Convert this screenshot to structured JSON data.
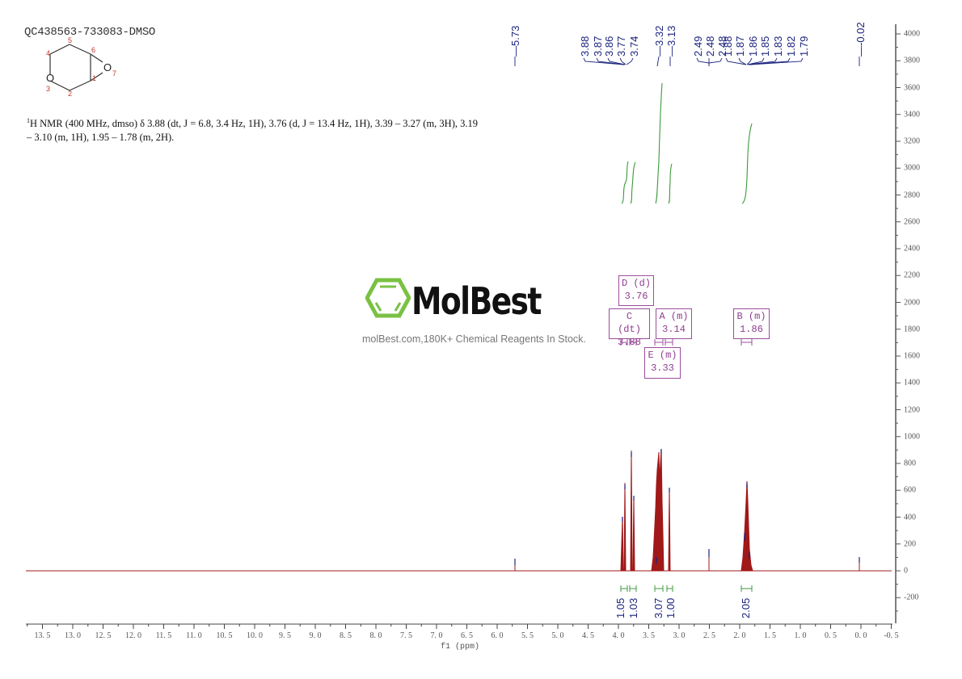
{
  "header": {
    "sample_id": "QC438563-733083-DMSO"
  },
  "structure": {
    "atom_labels": [
      "1",
      "2",
      "3",
      "4",
      "5",
      "6",
      "7"
    ],
    "heteroatoms": [
      {
        "symbol": "O",
        "index": "3"
      },
      {
        "symbol": "O",
        "index": "7"
      }
    ]
  },
  "description": {
    "nucleus_sup": "1",
    "line": "H NMR (400 MHz, dmso) δ 3.88 (dt, J = 6.8, 3.4 Hz, 1H), 3.76 (d, J = 13.4 Hz, 1H), 3.39 – 3.27 (m, 3H), 3.19 – 3.10 (m, 1H), 1.95 – 1.78 (m, 2H)."
  },
  "watermark": {
    "brand": "MolBest",
    "tagline": "molBest.com,180K+ Chemical Reagents In Stock.",
    "brand_color": "#7ac143"
  },
  "peak_labels": [
    "5.73",
    "3.88",
    "3.87",
    "3.86",
    "3.77",
    "3.74",
    "3.32",
    "3.13",
    "2.49",
    "2.48",
    "2.48",
    "1.88",
    "1.87",
    "1.86",
    "1.85",
    "1.83",
    "1.82",
    "1.79",
    "-0.02"
  ],
  "multiplets": [
    {
      "id": "D",
      "type": "d",
      "shift": "3.76",
      "label": "D (d)"
    },
    {
      "id": "C",
      "type": "dt",
      "shift": "3.88",
      "label": "C (dt)"
    },
    {
      "id": "A",
      "type": "m",
      "shift": "3.14",
      "label": "A (m)"
    },
    {
      "id": "B",
      "type": "m",
      "shift": "1.86",
      "label": "B (m)"
    },
    {
      "id": "E",
      "type": "m",
      "shift": "3.33",
      "label": "E (m)"
    }
  ],
  "integrals": [
    "1.05",
    "1.03",
    "3.07",
    "1.00",
    "2.05"
  ],
  "axes": {
    "xlabel": "f1 (ppm)",
    "xticks": [
      "13.5",
      "13.0",
      "12.5",
      "12.0",
      "11.5",
      "11.0",
      "10.5",
      "10.0",
      "9.5",
      "9.0",
      "8.5",
      "8.0",
      "7.5",
      "7.0",
      "6.5",
      "6.0",
      "5.5",
      "5.0",
      "4.5",
      "4.0",
      "3.5",
      "3.0",
      "2.5",
      "2.0",
      "1.5",
      "1.0",
      "0.5",
      "0.0",
      "-0.5"
    ],
    "yticks": [
      "4000",
      "3800",
      "3600",
      "3400",
      "3200",
      "3000",
      "2800",
      "2600",
      "2400",
      "2200",
      "2000",
      "1800",
      "1600",
      "1400",
      "1200",
      "1000",
      "800",
      "600",
      "400",
      "200",
      "0",
      "-200"
    ]
  },
  "colors": {
    "spectrum": "#a01818",
    "peak_marker": "#1a237e",
    "integral": "#3c9a3c",
    "multiplet_box": "#9c4d9c",
    "axis": "#555555"
  },
  "chart_data": {
    "type": "line",
    "title": "QC438563-733083-DMSO",
    "subtitle": "1H NMR (400 MHz, dmso)",
    "xlabel": "f1 (ppm)",
    "ylabel": "",
    "xlim": [
      13.8,
      -0.5
    ],
    "ylim": [
      -400,
      4100
    ],
    "x_reversed": true,
    "grid": false,
    "series": [
      {
        "name": "spectrum",
        "peaks": [
          {
            "ppm": 5.73,
            "intensity": 80
          },
          {
            "ppm": 3.89,
            "intensity": 420
          },
          {
            "ppm": 3.87,
            "intensity": 650
          },
          {
            "ppm": 3.77,
            "intensity": 890
          },
          {
            "ppm": 3.74,
            "intensity": 560
          },
          {
            "ppm": 3.35,
            "intensity": 420
          },
          {
            "ppm": 3.32,
            "intensity": 900
          },
          {
            "ppm": 3.29,
            "intensity": 650
          },
          {
            "ppm": 3.13,
            "intensity": 610
          },
          {
            "ppm": 2.49,
            "intensity": 160
          },
          {
            "ppm": 1.88,
            "intensity": 450
          },
          {
            "ppm": 1.86,
            "intensity": 700
          },
          {
            "ppm": 1.83,
            "intensity": 480
          },
          {
            "ppm": -0.02,
            "intensity": 110
          }
        ]
      },
      {
        "name": "integrals",
        "regions": [
          {
            "from": 3.92,
            "to": 3.84,
            "value": 1.05
          },
          {
            "from": 3.8,
            "to": 3.72,
            "value": 1.03
          },
          {
            "from": 3.39,
            "to": 3.27,
            "value": 3.07
          },
          {
            "from": 3.19,
            "to": 3.1,
            "value": 1.0
          },
          {
            "from": 1.95,
            "to": 1.78,
            "value": 2.05
          }
        ]
      }
    ],
    "annotations": [
      "D (d) 3.76",
      "C (dt) 3.88",
      "A (m) 3.14",
      "B (m) 1.86",
      "E (m) 3.33"
    ]
  }
}
